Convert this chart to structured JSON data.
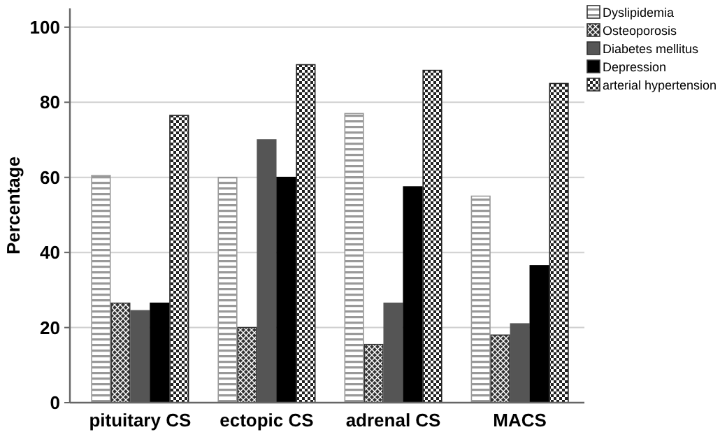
{
  "chart_data": {
    "type": "bar",
    "ylabel": "Percentage",
    "categories": [
      "pituitary CS",
      "ectopic CS",
      "adrenal CS",
      "MACS"
    ],
    "series": [
      {
        "name": "Dyslipidemia",
        "color": "#999999",
        "values": [
          60.5,
          60,
          77,
          55
        ]
      },
      {
        "name": "Osteoporosis",
        "color": "#333333",
        "values": [
          26.5,
          20,
          15.5,
          18
        ]
      },
      {
        "name": "Diabetes mellitus",
        "color": "#555555",
        "values": [
          24.5,
          70,
          26.5,
          21
        ]
      },
      {
        "name": "Depression",
        "color": "#000000",
        "values": [
          26.5,
          60,
          57.5,
          36.5
        ]
      },
      {
        "name": "arterial hypertension",
        "color": "#222222",
        "values": [
          76.5,
          90,
          88.5,
          85
        ]
      }
    ],
    "ylim": [
      0,
      105
    ],
    "yticks": [
      0,
      20,
      40,
      60,
      80,
      100
    ],
    "grid": "y",
    "legend": "top right"
  }
}
